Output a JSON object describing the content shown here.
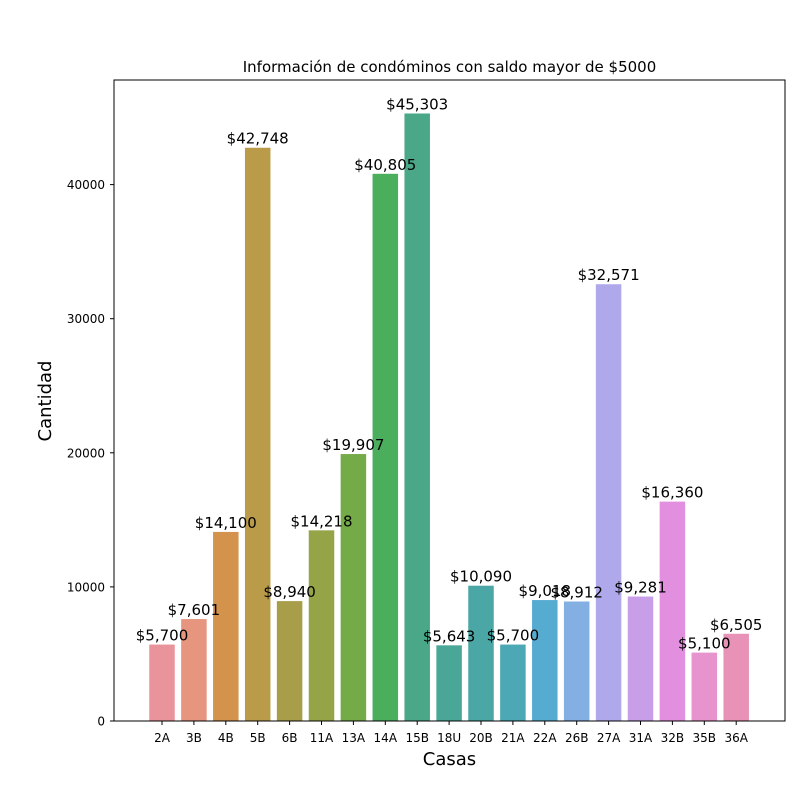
{
  "chart_data": {
    "type": "bar",
    "title": "Información de condóminos con saldo mayor de $5000",
    "xlabel": "Casas",
    "ylabel": "Cantidad",
    "ylim": [
      0,
      47800
    ],
    "yticks": [
      0,
      10000,
      20000,
      30000,
      40000
    ],
    "ytick_labels": [
      "0",
      "10000",
      "20000",
      "30000",
      "40000"
    ],
    "grid": false,
    "categories": [
      "2A",
      "3B",
      "4B",
      "5B",
      "6B",
      "11A",
      "13A",
      "14A",
      "15B",
      "18U",
      "20B",
      "21A",
      "22A",
      "26B",
      "27A",
      "31A",
      "32B",
      "35B",
      "36A"
    ],
    "values": [
      5700,
      7601,
      14100,
      42748,
      8940,
      14218,
      19907,
      40805,
      45303,
      5643,
      10090,
      5700,
      9018,
      8912,
      32571,
      9281,
      16360,
      5100,
      6505
    ],
    "labels": [
      "$5,700",
      "$7,601",
      "$14,100",
      "$42,748",
      "$8,940",
      "$14,218",
      "$19,907",
      "$40,805",
      "$45,303",
      "$5,643",
      "$10,090",
      "$5,700",
      "$9,018",
      "$8,912",
      "$32,571",
      "$9,281",
      "$16,360",
      "$5,100",
      "$6,505"
    ],
    "colors": [
      "#e8949a",
      "#e6957e",
      "#d4934d",
      "#ba9b4a",
      "#a89d48",
      "#94a447",
      "#75aa48",
      "#4aae5d",
      "#4aa888",
      "#4aa798",
      "#4ba7a6",
      "#4da8b6",
      "#56abd0",
      "#84afe3",
      "#afa9ec",
      "#c99ee9",
      "#e38fe0",
      "#e793cd",
      "#e892b8"
    ]
  }
}
